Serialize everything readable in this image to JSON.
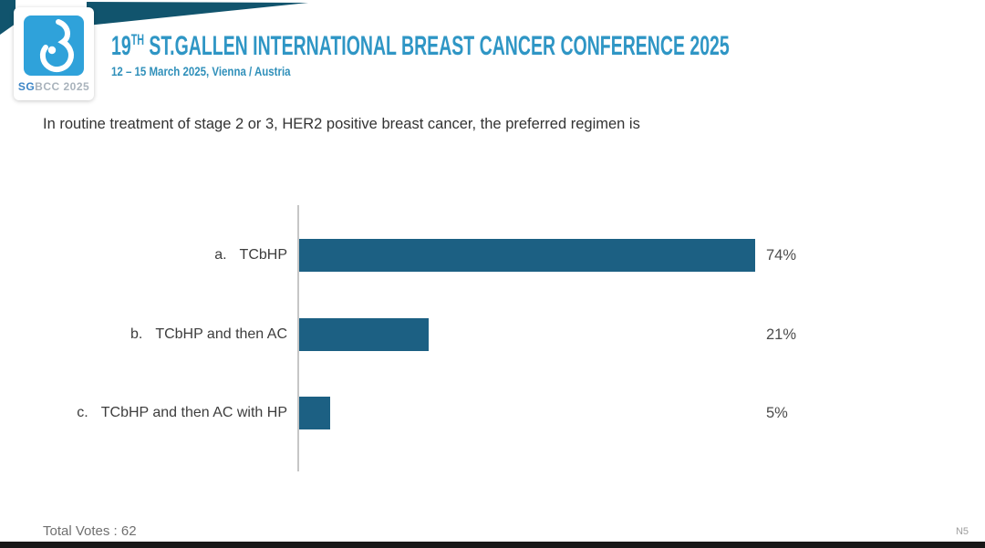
{
  "slide": {
    "header": {
      "title_number": "19",
      "title_sup": "TH",
      "title_rest": " ST.GALLEN INTERNATIONAL BREAST CANCER CONFERENCE 2025",
      "date_line": "12 – 15 March 2025, Vienna / Austria"
    },
    "logo": {
      "wordmark_sg": "SG",
      "wordmark_rest": "BCC 2025"
    },
    "question": "In routine treatment of stage 2 or 3, HER2 positive breast cancer, the preferred regimen is",
    "footer": {
      "total_votes_label": "Total Votes : 62",
      "slide_code": "N5"
    }
  },
  "colors": {
    "title_blue": "#2f96c5",
    "subtitle_blue": "#3090ba",
    "banner_teal": "#11546d",
    "logo_blue": "#2fa2da",
    "bar_teal": "#1c6083",
    "axis_gray": "#c6c6c6",
    "bottom_bar_black": "#171717"
  },
  "chart_data": {
    "type": "bar",
    "orientation": "horizontal",
    "title": "In routine treatment of stage 2 or 3, HER2 positive breast cancer, the preferred regimen is",
    "categories": [
      "a. TCbHP",
      "b. TCbHP and then AC",
      "c. TCbHP and then AC with HP"
    ],
    "category_prefixes": [
      "a.",
      "b.",
      "c."
    ],
    "category_texts": [
      "TCbHP",
      "TCbHP and then AC",
      "TCbHP and then AC with HP"
    ],
    "values": [
      74,
      21,
      5
    ],
    "value_labels": [
      "74%",
      "21%",
      "5%"
    ],
    "unit": "percent of votes",
    "xlim": [
      0,
      100
    ],
    "grid": "off",
    "legend": "none",
    "total_votes": 62
  }
}
